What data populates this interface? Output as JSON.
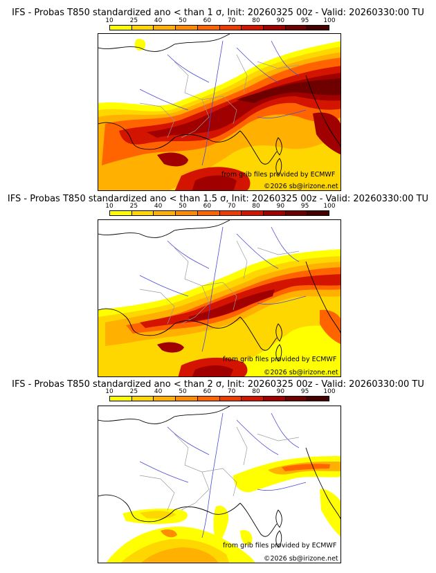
{
  "colors": {
    "p10": "#ffff00",
    "p25": "#ffd700",
    "p40": "#ffb000",
    "p50": "#ff8c00",
    "p60": "#ff6400",
    "p70": "#f03c00",
    "p80": "#d21400",
    "p90": "#a00000",
    "p95": "#6e0000",
    "p100": "#460000",
    "borders": "#9a9a9a",
    "rivers": "#4a4ad6",
    "coast": "#000000"
  },
  "scale": {
    "ticks": [
      "10",
      "25",
      "40",
      "50",
      "60",
      "70",
      "80",
      "90",
      "95",
      "100"
    ]
  },
  "panels": [
    {
      "title": "IFS - Probas T850  standardized ano < than 1 σ, Init: 20260325 00z - Valid: 20260330:00 TU",
      "threshold_sigma": 1,
      "credit_source": "from grib files provided by ECMWF",
      "credit_site": "©2026 sb@irizone.net"
    },
    {
      "title": "IFS - Probas T850  standardized ano < than 1.5 σ, Init: 20260325 00z - Valid: 20260330:00 TU",
      "threshold_sigma": 1.5,
      "credit_source": "from grib files provided by ECMWF",
      "credit_site": "©2026 sb@irizone.net"
    },
    {
      "title": "IFS - Probas T850  standardized ano < than 2 σ, Init: 20260325 00z - Valid: 20260330:00 TU",
      "threshold_sigma": 2,
      "credit_source": "from grib files provided by ECMWF",
      "credit_site": "©2026 sb@irizone.net"
    }
  ]
}
